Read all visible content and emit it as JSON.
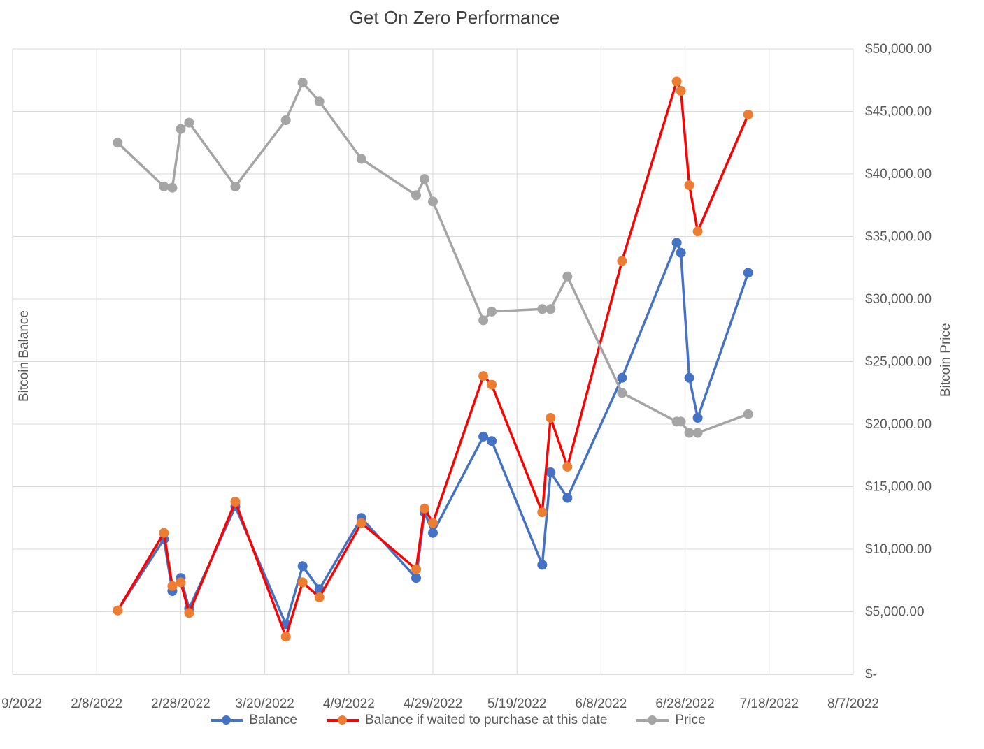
{
  "page": {
    "background": "#FFFFFF"
  },
  "chart_data": {
    "type": "line",
    "title": "Get On Zero Performance",
    "title_color": "#404040",
    "grid": true,
    "gridline_color": "#D9D9D9",
    "axis_line_color": "#BFBFBF",
    "tick_label_color": "#595959",
    "legend_position": "bottom",
    "x_axis": {
      "tick_labels": [
        "9/2022",
        "2/8/2022",
        "2/28/2022",
        "3/20/2022",
        "4/9/2022",
        "4/29/2022",
        "5/19/2022",
        "6/8/2022",
        "6/28/2022",
        "7/18/2022",
        "8/7/2022"
      ],
      "tick_days": [
        0,
        20,
        40,
        60,
        80,
        100,
        120,
        140,
        160,
        180,
        200
      ],
      "range_days": [
        0,
        200
      ],
      "note": "Day 0 = 1/19/2022; the leftmost tick label is clipped at the image edge and shows only 9/2022"
    },
    "y_axis_left": {
      "label": "Bitcoin Balance",
      "tick_labels_visible": false
    },
    "y_axis_right": {
      "label": "Bitcoin Price",
      "range": [
        0,
        50000
      ],
      "tick_step": 5000,
      "tick_labels_top_to_bottom": [
        "$50,000.00",
        "$45,000.00",
        "$40,000.00",
        "$35,000.00",
        "$30,000.00",
        "$25,000.00",
        "$20,000.00",
        "$15,000.00",
        "$10,000.00",
        "$5,000.00",
        "$-"
      ]
    },
    "x_dates": [
      "2/13/2022",
      "2/24/2022",
      "2/26/2022",
      "2/28/2022",
      "3/2/2022",
      "3/13/2022",
      "3/25/2022",
      "3/29/2022",
      "4/2/2022",
      "4/12/2022",
      "4/25/2022",
      "4/27/2022",
      "4/29/2022",
      "5/11/2022",
      "5/13/2022",
      "5/25/2022",
      "5/27/2022",
      "5/31/2022",
      "6/13/2022",
      "6/26/2022",
      "6/27/2022",
      "6/29/2022",
      "7/1/2022",
      "7/13/2022"
    ],
    "x_days": [
      25,
      36,
      38,
      40,
      42,
      53,
      65,
      69,
      73,
      83,
      96,
      98,
      100,
      112,
      114,
      126,
      128,
      132,
      145,
      158,
      159,
      161,
      163,
      175
    ],
    "series": [
      {
        "id": "balance",
        "name": "Balance",
        "line_color": "#4472C4",
        "marker_color": "#4472C4",
        "values": [
          5100,
          10800,
          6650,
          7700,
          5250,
          13400,
          4000,
          8650,
          6800,
          12500,
          7700,
          12950,
          11300,
          19000,
          18650,
          8750,
          16150,
          14100,
          23700,
          34500,
          33700,
          23700,
          20500,
          32100
        ]
      },
      {
        "id": "waited",
        "name": "Balance if waited to purchase at this date",
        "line_color": "#FF0000",
        "marker_color": "#ED7D31",
        "values": [
          5100,
          11300,
          7050,
          7350,
          4900,
          13800,
          3000,
          7350,
          6150,
          12100,
          8400,
          13250,
          12100,
          23850,
          23150,
          12950,
          20500,
          16600,
          33050,
          47400,
          46650,
          39100,
          35400,
          44750
        ]
      },
      {
        "id": "price",
        "name": "Price",
        "line_color": "#A5A5A5",
        "marker_color": "#A5A5A5",
        "values": [
          42500,
          39000,
          38900,
          43600,
          44100,
          39000,
          44300,
          47300,
          45800,
          41200,
          38300,
          39600,
          37800,
          28300,
          29000,
          29200,
          29200,
          31800,
          22500,
          20200,
          20200,
          19300,
          19300,
          20800
        ]
      }
    ],
    "values_note": "Balance series are plotted on the unlabeled left axis; values estimated in right-axis dollar units as drawn."
  }
}
